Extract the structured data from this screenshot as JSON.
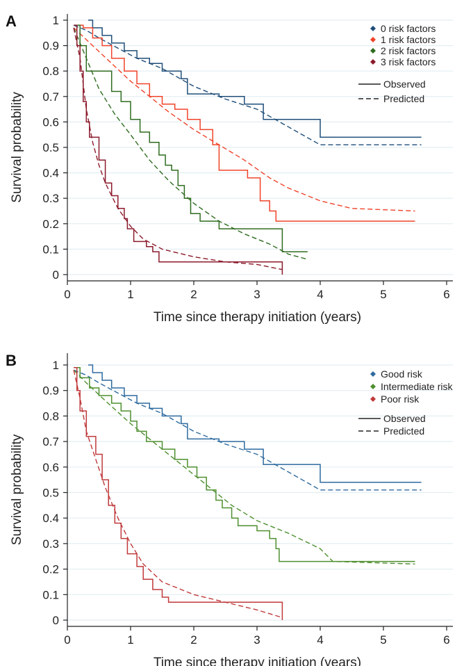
{
  "chart_data": [
    {
      "panel_label": "A",
      "type": "line",
      "xlabel": "Time since therapy initiation (years)",
      "ylabel": "Survival probability",
      "xlim": [
        0,
        6
      ],
      "ylim": [
        0,
        1
      ],
      "xticks": [
        0,
        1,
        2,
        3,
        4,
        5,
        6
      ],
      "yticks": [
        "0",
        "0.1",
        "0.2",
        "0.3",
        "0.4",
        "0.5",
        "0.6",
        "0.7",
        "0.8",
        "0.9",
        "1"
      ],
      "grid": "horizontal",
      "legend_position": "top-right",
      "line_style_legend": {
        "solid": "Observed",
        "dashed": "Predicted"
      },
      "series": [
        {
          "name": "0 risk factors",
          "color": "#1f4e79",
          "observed": [
            [
              0.33,
              1
            ],
            [
              0.4,
              0.97
            ],
            [
              0.55,
              0.94
            ],
            [
              0.7,
              0.91
            ],
            [
              0.9,
              0.88
            ],
            [
              1.1,
              0.85
            ],
            [
              1.3,
              0.83
            ],
            [
              1.5,
              0.8
            ],
            [
              1.8,
              0.77
            ],
            [
              1.9,
              0.71
            ],
            [
              2.4,
              0.7
            ],
            [
              2.8,
              0.67
            ],
            [
              3.1,
              0.61
            ],
            [
              4.0,
              0.54
            ],
            [
              5.6,
              0.54
            ]
          ],
          "predicted": [
            [
              0.1,
              0.98
            ],
            [
              0.3,
              0.96
            ],
            [
              0.5,
              0.93
            ],
            [
              0.8,
              0.89
            ],
            [
              1.1,
              0.85
            ],
            [
              1.5,
              0.81
            ],
            [
              2.0,
              0.74
            ],
            [
              2.5,
              0.69
            ],
            [
              3.0,
              0.65
            ],
            [
              3.5,
              0.58
            ],
            [
              4.0,
              0.51
            ],
            [
              5.6,
              0.51
            ]
          ]
        },
        {
          "name": "1 risk factors",
          "color": "#f0432a",
          "observed": [
            [
              0.1,
              0.98
            ],
            [
              0.25,
              0.97
            ],
            [
              0.4,
              0.93
            ],
            [
              0.55,
              0.9
            ],
            [
              0.7,
              0.85
            ],
            [
              0.9,
              0.8
            ],
            [
              1.1,
              0.75
            ],
            [
              1.3,
              0.7
            ],
            [
              1.5,
              0.67
            ],
            [
              1.7,
              0.65
            ],
            [
              1.9,
              0.61
            ],
            [
              2.1,
              0.57
            ],
            [
              2.3,
              0.51
            ],
            [
              2.4,
              0.41
            ],
            [
              2.75,
              0.41
            ],
            [
              2.85,
              0.38
            ],
            [
              3.05,
              0.29
            ],
            [
              3.2,
              0.25
            ],
            [
              3.3,
              0.21
            ],
            [
              5.5,
              0.21
            ]
          ],
          "predicted": [
            [
              0.1,
              0.97
            ],
            [
              0.4,
              0.9
            ],
            [
              0.7,
              0.83
            ],
            [
              1.0,
              0.76
            ],
            [
              1.3,
              0.7
            ],
            [
              1.6,
              0.64
            ],
            [
              2.0,
              0.57
            ],
            [
              2.4,
              0.51
            ],
            [
              2.8,
              0.45
            ],
            [
              3.2,
              0.38
            ],
            [
              3.5,
              0.34
            ],
            [
              4.0,
              0.29
            ],
            [
              4.5,
              0.26
            ],
            [
              5.5,
              0.25
            ]
          ]
        },
        {
          "name": "2 risk factors",
          "color": "#2e6b1f",
          "observed": [
            [
              0.1,
              0.98
            ],
            [
              0.2,
              0.9
            ],
            [
              0.3,
              0.8
            ],
            [
              0.6,
              0.8
            ],
            [
              0.7,
              0.72
            ],
            [
              0.85,
              0.68
            ],
            [
              1.0,
              0.61
            ],
            [
              1.15,
              0.56
            ],
            [
              1.3,
              0.52
            ],
            [
              1.45,
              0.47
            ],
            [
              1.55,
              0.43
            ],
            [
              1.65,
              0.41
            ],
            [
              1.75,
              0.35
            ],
            [
              1.85,
              0.3
            ],
            [
              1.95,
              0.24
            ],
            [
              2.1,
              0.21
            ],
            [
              2.4,
              0.18
            ],
            [
              3.4,
              0.17
            ],
            [
              3.4,
              0.09
            ],
            [
              3.8,
              0.09
            ]
          ],
          "predicted": [
            [
              0.1,
              0.97
            ],
            [
              0.3,
              0.85
            ],
            [
              0.5,
              0.73
            ],
            [
              0.75,
              0.63
            ],
            [
              1.0,
              0.55
            ],
            [
              1.3,
              0.45
            ],
            [
              1.6,
              0.37
            ],
            [
              2.0,
              0.28
            ],
            [
              2.4,
              0.21
            ],
            [
              2.8,
              0.16
            ],
            [
              3.2,
              0.12
            ],
            [
              3.5,
              0.08
            ],
            [
              3.8,
              0.06
            ]
          ]
        },
        {
          "name": "3 risk factors",
          "color": "#8b1a2b",
          "observed": [
            [
              0.1,
              0.98
            ],
            [
              0.15,
              0.9
            ],
            [
              0.2,
              0.8
            ],
            [
              0.25,
              0.68
            ],
            [
              0.3,
              0.6
            ],
            [
              0.35,
              0.54
            ],
            [
              0.45,
              0.54
            ],
            [
              0.5,
              0.45
            ],
            [
              0.6,
              0.36
            ],
            [
              0.7,
              0.31
            ],
            [
              0.8,
              0.26
            ],
            [
              0.9,
              0.22
            ],
            [
              0.95,
              0.18
            ],
            [
              1.05,
              0.13
            ],
            [
              1.25,
              0.11
            ],
            [
              1.35,
              0.09
            ],
            [
              1.45,
              0.05
            ],
            [
              3.4,
              0.05
            ],
            [
              3.4,
              0
            ]
          ],
          "predicted": [
            [
              0.1,
              0.97
            ],
            [
              0.2,
              0.85
            ],
            [
              0.3,
              0.65
            ],
            [
              0.4,
              0.52
            ],
            [
              0.5,
              0.43
            ],
            [
              0.6,
              0.36
            ],
            [
              0.8,
              0.26
            ],
            [
              1.0,
              0.19
            ],
            [
              1.2,
              0.14
            ],
            [
              1.5,
              0.1
            ],
            [
              2.0,
              0.07
            ],
            [
              2.5,
              0.05
            ],
            [
              3.0,
              0.04
            ],
            [
              3.4,
              0.02
            ]
          ]
        }
      ]
    },
    {
      "panel_label": "B",
      "type": "line",
      "xlabel": "Time since therapy initiation (years)",
      "ylabel": "Survival probability",
      "xlim": [
        0,
        6
      ],
      "ylim": [
        0,
        1
      ],
      "xticks": [
        0,
        1,
        2,
        3,
        4,
        5,
        6
      ],
      "yticks": [
        "0",
        "0.1",
        "0.2",
        "0.3",
        "0.4",
        "0.5",
        "0.6",
        "0.7",
        "0.8",
        "0.9",
        "1"
      ],
      "grid": "horizontal",
      "legend_position": "top-right",
      "line_style_legend": {
        "solid": "Observed",
        "dashed": "Predicted"
      },
      "series": [
        {
          "name": "Good risk",
          "color": "#2d6a9f",
          "observed": [
            [
              0.33,
              1
            ],
            [
              0.4,
              0.97
            ],
            [
              0.55,
              0.94
            ],
            [
              0.7,
              0.91
            ],
            [
              0.9,
              0.88
            ],
            [
              1.1,
              0.85
            ],
            [
              1.3,
              0.83
            ],
            [
              1.5,
              0.8
            ],
            [
              1.8,
              0.77
            ],
            [
              1.9,
              0.71
            ],
            [
              2.4,
              0.7
            ],
            [
              2.8,
              0.67
            ],
            [
              3.1,
              0.61
            ],
            [
              4.0,
              0.54
            ],
            [
              5.6,
              0.54
            ]
          ],
          "predicted": [
            [
              0.1,
              0.98
            ],
            [
              0.3,
              0.96
            ],
            [
              0.5,
              0.93
            ],
            [
              0.8,
              0.89
            ],
            [
              1.1,
              0.85
            ],
            [
              1.5,
              0.81
            ],
            [
              2.0,
              0.74
            ],
            [
              2.5,
              0.69
            ],
            [
              3.0,
              0.65
            ],
            [
              3.5,
              0.58
            ],
            [
              4.0,
              0.51
            ],
            [
              5.6,
              0.51
            ]
          ]
        },
        {
          "name": "Intermediate risk",
          "color": "#4e8f2f",
          "observed": [
            [
              0.1,
              0.99
            ],
            [
              0.2,
              0.95
            ],
            [
              0.35,
              0.91
            ],
            [
              0.5,
              0.88
            ],
            [
              0.7,
              0.85
            ],
            [
              0.85,
              0.82
            ],
            [
              1.0,
              0.78
            ],
            [
              1.1,
              0.74
            ],
            [
              1.25,
              0.7
            ],
            [
              1.5,
              0.67
            ],
            [
              1.7,
              0.63
            ],
            [
              1.9,
              0.6
            ],
            [
              2.05,
              0.56
            ],
            [
              2.2,
              0.51
            ],
            [
              2.35,
              0.47
            ],
            [
              2.45,
              0.44
            ],
            [
              2.6,
              0.4
            ],
            [
              2.7,
              0.37
            ],
            [
              3.0,
              0.35
            ],
            [
              3.2,
              0.32
            ],
            [
              3.3,
              0.28
            ],
            [
              3.35,
              0.23
            ],
            [
              5.5,
              0.23
            ]
          ],
          "predicted": [
            [
              0.1,
              0.98
            ],
            [
              0.3,
              0.93
            ],
            [
              0.6,
              0.86
            ],
            [
              1.0,
              0.77
            ],
            [
              1.4,
              0.69
            ],
            [
              1.8,
              0.61
            ],
            [
              2.2,
              0.53
            ],
            [
              2.6,
              0.45
            ],
            [
              3.0,
              0.39
            ],
            [
              3.5,
              0.34
            ],
            [
              4.0,
              0.28
            ],
            [
              4.2,
              0.23
            ],
            [
              5.5,
              0.22
            ]
          ]
        },
        {
          "name": "Poor risk",
          "color": "#c0393b",
          "observed": [
            [
              0.1,
              0.99
            ],
            [
              0.15,
              0.9
            ],
            [
              0.2,
              0.82
            ],
            [
              0.3,
              0.72
            ],
            [
              0.45,
              0.65
            ],
            [
              0.55,
              0.55
            ],
            [
              0.65,
              0.45
            ],
            [
              0.75,
              0.38
            ],
            [
              0.85,
              0.32
            ],
            [
              0.95,
              0.26
            ],
            [
              1.1,
              0.21
            ],
            [
              1.2,
              0.16
            ],
            [
              1.35,
              0.12
            ],
            [
              1.5,
              0.09
            ],
            [
              1.6,
              0.07
            ],
            [
              3.4,
              0.07
            ],
            [
              3.4,
              0
            ]
          ],
          "predicted": [
            [
              0.1,
              0.98
            ],
            [
              0.2,
              0.87
            ],
            [
              0.3,
              0.74
            ],
            [
              0.45,
              0.63
            ],
            [
              0.6,
              0.52
            ],
            [
              0.8,
              0.4
            ],
            [
              1.0,
              0.3
            ],
            [
              1.2,
              0.22
            ],
            [
              1.5,
              0.15
            ],
            [
              2.0,
              0.1
            ],
            [
              2.5,
              0.07
            ],
            [
              3.0,
              0.04
            ],
            [
              3.4,
              0.01
            ]
          ]
        }
      ]
    }
  ]
}
